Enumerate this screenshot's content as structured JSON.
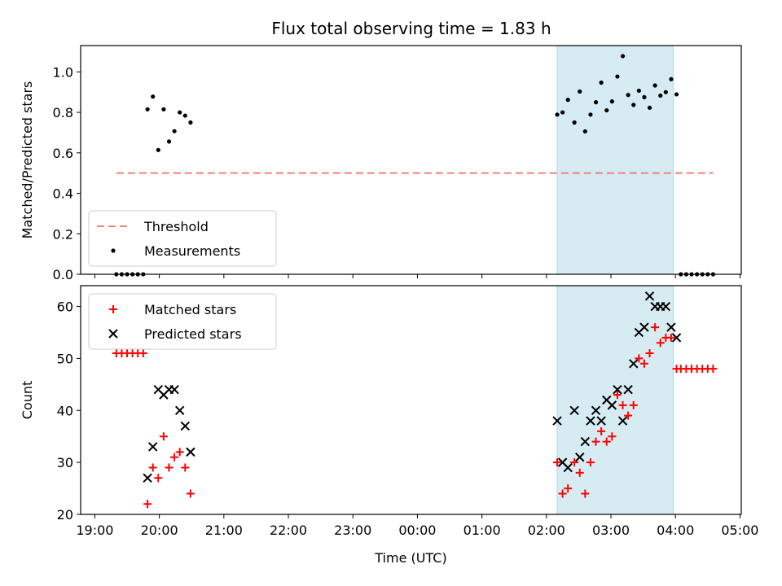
{
  "chart_data": [
    {
      "type": "scatter",
      "title": "Flux total observing time = 1.83 h",
      "xlabel": "",
      "ylabel": "Matched/Predicted stars",
      "ylim": [
        0,
        1.13
      ],
      "yticks": [
        0.0,
        0.2,
        0.4,
        0.6,
        0.8,
        1.0
      ],
      "highlight_band": {
        "start": "02:10",
        "end": "03:58",
        "color": "#add8e6"
      },
      "threshold": {
        "name": "Threshold",
        "y": 0.5,
        "x_start": "19:20",
        "x_end": "04:35",
        "color": "#f08080"
      },
      "legend": {
        "position": "lower-left",
        "entries": [
          "Threshold",
          "Measurements"
        ]
      },
      "series": [
        {
          "name": "Measurements",
          "color": "#000000",
          "points": [
            [
              "19:20",
              0
            ],
            [
              "19:25",
              0
            ],
            [
              "19:30",
              0
            ],
            [
              "19:35",
              0
            ],
            [
              "19:40",
              0
            ],
            [
              "19:45",
              0
            ],
            [
              "19:49",
              0.815
            ],
            [
              "19:54",
              0.878
            ],
            [
              "19:59",
              0.614
            ],
            [
              "20:04",
              0.815
            ],
            [
              "20:09",
              0.656
            ],
            [
              "20:14",
              0.707
            ],
            [
              "20:19",
              0.8
            ],
            [
              "20:24",
              0.784
            ],
            [
              "20:29",
              0.75
            ],
            [
              "02:10",
              0.789
            ],
            [
              "02:15",
              0.8
            ],
            [
              "02:20",
              0.862
            ],
            [
              "02:26",
              0.75
            ],
            [
              "02:31",
              0.903
            ],
            [
              "02:36",
              0.706
            ],
            [
              "02:41",
              0.789
            ],
            [
              "02:46",
              0.85
            ],
            [
              "02:51",
              0.947
            ],
            [
              "02:56",
              0.81
            ],
            [
              "03:01",
              0.854
            ],
            [
              "03:06",
              0.977
            ],
            [
              "03:11",
              1.078
            ],
            [
              "03:16",
              0.886
            ],
            [
              "03:21",
              0.837
            ],
            [
              "03:26",
              0.907
            ],
            [
              "03:31",
              0.875
            ],
            [
              "03:36",
              0.823
            ],
            [
              "03:41",
              0.933
            ],
            [
              "03:46",
              0.883
            ],
            [
              "03:51",
              0.9
            ],
            [
              "03:56",
              0.964
            ],
            [
              "04:01",
              0.889
            ],
            [
              "04:05",
              0
            ],
            [
              "04:10",
              0
            ],
            [
              "04:15",
              0
            ],
            [
              "04:20",
              0
            ],
            [
              "04:25",
              0
            ],
            [
              "04:30",
              0
            ],
            [
              "04:35",
              0
            ]
          ]
        }
      ]
    },
    {
      "type": "scatter",
      "title": "",
      "xlabel": "Time (UTC)",
      "ylabel": "Count",
      "ylim": [
        20,
        64
      ],
      "yticks": [
        20,
        30,
        40,
        50,
        60
      ],
      "xticks": [
        "19:00",
        "20:00",
        "21:00",
        "22:00",
        "23:00",
        "00:00",
        "01:00",
        "02:00",
        "03:00",
        "04:00",
        "05:00"
      ],
      "highlight_band": {
        "start": "02:10",
        "end": "03:58",
        "color": "#add8e6"
      },
      "legend": {
        "position": "top-left",
        "entries": [
          "Matched stars",
          "Predicted stars"
        ]
      },
      "series": [
        {
          "name": "Matched stars",
          "marker": "+",
          "color": "#ff0000",
          "points": [
            [
              "19:20",
              51
            ],
            [
              "19:25",
              51
            ],
            [
              "19:30",
              51
            ],
            [
              "19:35",
              51
            ],
            [
              "19:40",
              51
            ],
            [
              "19:45",
              51
            ],
            [
              "19:49",
              22
            ],
            [
              "19:54",
              29
            ],
            [
              "19:59",
              27
            ],
            [
              "20:04",
              35
            ],
            [
              "20:09",
              29
            ],
            [
              "20:14",
              31
            ],
            [
              "20:19",
              32
            ],
            [
              "20:24",
              29
            ],
            [
              "20:29",
              24
            ],
            [
              "02:10",
              30
            ],
            [
              "02:15",
              24
            ],
            [
              "02:20",
              25
            ],
            [
              "02:26",
              30
            ],
            [
              "02:31",
              28
            ],
            [
              "02:36",
              24
            ],
            [
              "02:41",
              30
            ],
            [
              "02:46",
              34
            ],
            [
              "02:51",
              36
            ],
            [
              "02:56",
              34
            ],
            [
              "03:01",
              35
            ],
            [
              "03:06",
              43
            ],
            [
              "03:11",
              41
            ],
            [
              "03:16",
              39
            ],
            [
              "03:21",
              41
            ],
            [
              "03:26",
              50
            ],
            [
              "03:31",
              49
            ],
            [
              "03:36",
              51
            ],
            [
              "03:41",
              56
            ],
            [
              "03:46",
              53
            ],
            [
              "03:51",
              54
            ],
            [
              "03:56",
              54
            ],
            [
              "04:01",
              48
            ],
            [
              "04:05",
              48
            ],
            [
              "04:10",
              48
            ],
            [
              "04:15",
              48
            ],
            [
              "04:20",
              48
            ],
            [
              "04:25",
              48
            ],
            [
              "04:30",
              48
            ],
            [
              "04:35",
              48
            ]
          ]
        },
        {
          "name": "Predicted stars",
          "marker": "x",
          "color": "#000000",
          "points": [
            [
              "19:49",
              27
            ],
            [
              "19:54",
              33
            ],
            [
              "19:59",
              44
            ],
            [
              "20:04",
              43
            ],
            [
              "20:09",
              44
            ],
            [
              "20:14",
              44
            ],
            [
              "20:19",
              40
            ],
            [
              "20:24",
              37
            ],
            [
              "20:29",
              32
            ],
            [
              "02:10",
              38
            ],
            [
              "02:15",
              30
            ],
            [
              "02:20",
              29
            ],
            [
              "02:26",
              40
            ],
            [
              "02:31",
              31
            ],
            [
              "02:36",
              34
            ],
            [
              "02:41",
              38
            ],
            [
              "02:46",
              40
            ],
            [
              "02:51",
              38
            ],
            [
              "02:56",
              42
            ],
            [
              "03:01",
              41
            ],
            [
              "03:06",
              44
            ],
            [
              "03:11",
              38
            ],
            [
              "03:16",
              44
            ],
            [
              "03:21",
              49
            ],
            [
              "03:26",
              55
            ],
            [
              "03:31",
              56
            ],
            [
              "03:36",
              62
            ],
            [
              "03:41",
              60
            ],
            [
              "03:46",
              60
            ],
            [
              "03:51",
              60
            ],
            [
              "03:56",
              56
            ],
            [
              "04:01",
              54
            ]
          ]
        }
      ]
    }
  ]
}
